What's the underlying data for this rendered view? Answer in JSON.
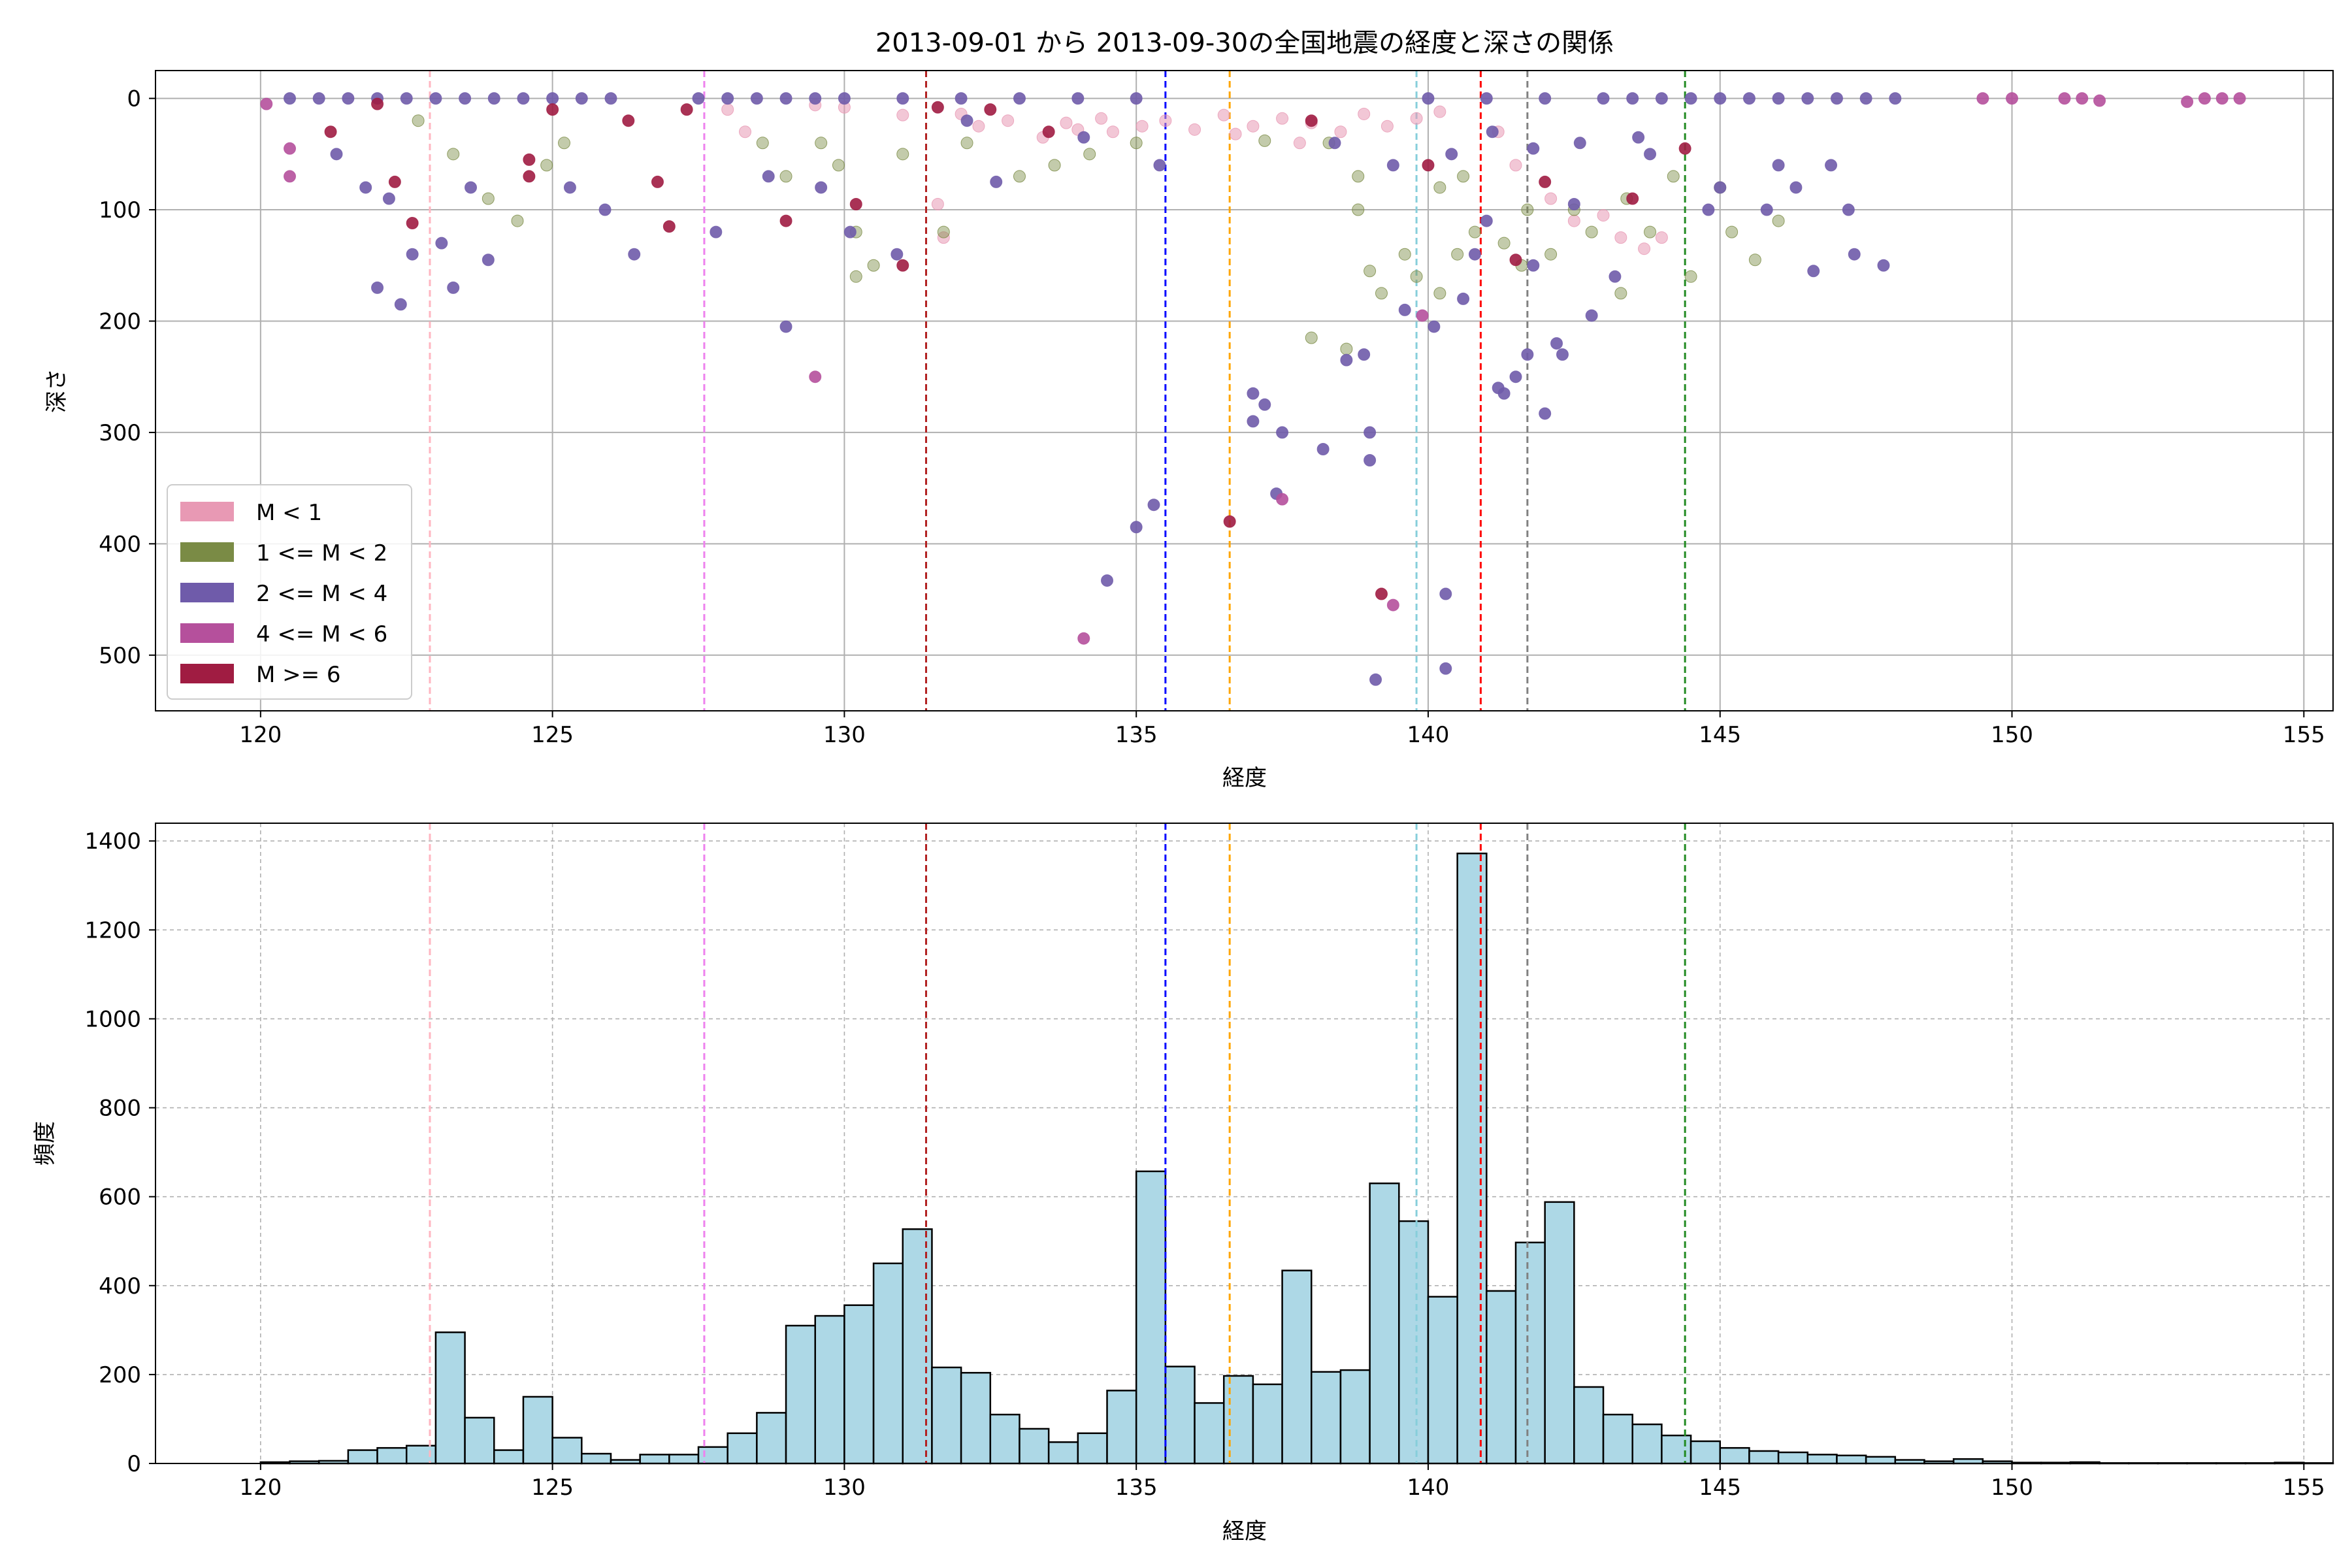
{
  "chart_data": [
    {
      "type": "scatter",
      "title": "2013-09-01 から 2013-09-30の全国地震の経度と深さの関係",
      "xlabel": "経度",
      "ylabel": "深さ",
      "xlim": [
        118.2,
        155.5
      ],
      "ylim": [
        550,
        -25
      ],
      "y_inverted": true,
      "xticks": [
        120,
        125,
        130,
        135,
        140,
        145,
        150,
        155
      ],
      "yticks": [
        0,
        100,
        200,
        300,
        400,
        500
      ],
      "grid": true,
      "legend_position": "lower-left",
      "legend": [
        {
          "label": "M < 1",
          "color": "#E899B4"
        },
        {
          "label": "1 <= M < 2",
          "color": "#7A8B45"
        },
        {
          "label": "2 <= M < 4",
          "color": "#6F5BAA"
        },
        {
          "label": "4 <= M < 6",
          "color": "#B5509C"
        },
        {
          "label": "M >= 6",
          "color": "#A01C42"
        }
      ],
      "vlines": [
        {
          "x": 122.9,
          "color": "#FFB6C1"
        },
        {
          "x": 127.6,
          "color": "#EE82EE"
        },
        {
          "x": 131.4,
          "color": "#B22222"
        },
        {
          "x": 135.5,
          "color": "#0000FF"
        },
        {
          "x": 136.6,
          "color": "#FFA500"
        },
        {
          "x": 139.8,
          "color": "#87CEDB"
        },
        {
          "x": 140.9,
          "color": "#FF0000"
        },
        {
          "x": 141.7,
          "color": "#808080"
        },
        {
          "x": 144.4,
          "color": "#228B22"
        }
      ],
      "series": [
        {
          "name": "M < 1",
          "points": [
            [
              128.0,
              10
            ],
            [
              128.3,
              30
            ],
            [
              130.0,
              8
            ],
            [
              131.0,
              15
            ],
            [
              131.6,
              95
            ],
            [
              131.7,
              125
            ],
            [
              132.3,
              25
            ],
            [
              132.8,
              20
            ],
            [
              133.4,
              35
            ],
            [
              134.0,
              28
            ],
            [
              134.6,
              30
            ],
            [
              135.1,
              25
            ],
            [
              135.5,
              20
            ],
            [
              136.0,
              28
            ],
            [
              136.5,
              15
            ],
            [
              137.0,
              25
            ],
            [
              137.5,
              18
            ],
            [
              138.0,
              22
            ],
            [
              138.5,
              30
            ],
            [
              138.9,
              14
            ],
            [
              139.3,
              25
            ],
            [
              139.8,
              18
            ],
            [
              140.2,
              12
            ],
            [
              141.2,
              30
            ],
            [
              141.5,
              60
            ],
            [
              142.1,
              90
            ],
            [
              142.5,
              110
            ],
            [
              143.0,
              105
            ],
            [
              143.3,
              125
            ],
            [
              143.7,
              135
            ],
            [
              144.0,
              125
            ],
            [
              134.4,
              18
            ],
            [
              133.8,
              22
            ],
            [
              129.5,
              6
            ],
            [
              132.0,
              14
            ],
            [
              136.7,
              32
            ],
            [
              137.8,
              40
            ]
          ]
        },
        {
          "name": "1 <= M < 2",
          "points": [
            [
              122.7,
              20
            ],
            [
              123.3,
              50
            ],
            [
              123.9,
              90
            ],
            [
              124.4,
              110
            ],
            [
              124.9,
              60
            ],
            [
              125.2,
              40
            ],
            [
              128.6,
              40
            ],
            [
              129.0,
              70
            ],
            [
              129.6,
              40
            ],
            [
              129.9,
              60
            ],
            [
              130.2,
              120
            ],
            [
              130.2,
              160
            ],
            [
              130.5,
              150
            ],
            [
              131.0,
              50
            ],
            [
              131.7,
              120
            ],
            [
              132.1,
              40
            ],
            [
              133.0,
              70
            ],
            [
              133.6,
              60
            ],
            [
              134.2,
              50
            ],
            [
              135.0,
              40
            ],
            [
              137.2,
              38
            ],
            [
              138.3,
              40
            ],
            [
              138.8,
              70
            ],
            [
              138.8,
              100
            ],
            [
              139.0,
              155
            ],
            [
              139.2,
              175
            ],
            [
              139.8,
              160
            ],
            [
              140.2,
              175
            ],
            [
              140.6,
              70
            ],
            [
              140.8,
              120
            ],
            [
              141.3,
              130
            ],
            [
              141.6,
              150
            ],
            [
              141.7,
              100
            ],
            [
              142.1,
              140
            ],
            [
              142.5,
              100
            ],
            [
              142.8,
              120
            ],
            [
              143.4,
              90
            ],
            [
              143.8,
              120
            ],
            [
              144.2,
              70
            ],
            [
              144.5,
              160
            ],
            [
              145.0,
              80
            ],
            [
              145.2,
              120
            ],
            [
              145.6,
              145
            ],
            [
              146.0,
              110
            ],
            [
              138.0,
              215
            ],
            [
              138.6,
              225
            ],
            [
              139.6,
              140
            ],
            [
              143.3,
              175
            ],
            [
              140.2,
              80
            ],
            [
              140.5,
              140
            ]
          ]
        },
        {
          "name": "2 <= M < 4",
          "points": [
            [
              120.5,
              0
            ],
            [
              121.0,
              0
            ],
            [
              121.5,
              0
            ],
            [
              122.0,
              0
            ],
            [
              122.5,
              0
            ],
            [
              123.0,
              0
            ],
            [
              123.5,
              0
            ],
            [
              124.0,
              0
            ],
            [
              124.5,
              0
            ],
            [
              125.0,
              0
            ],
            [
              125.5,
              0
            ],
            [
              126.0,
              0
            ],
            [
              127.5,
              0
            ],
            [
              128.0,
              0
            ],
            [
              128.5,
              0
            ],
            [
              129.0,
              0
            ],
            [
              129.5,
              0
            ],
            [
              130.0,
              0
            ],
            [
              131.0,
              0
            ],
            [
              132.0,
              0
            ],
            [
              133.0,
              0
            ],
            [
              134.0,
              0
            ],
            [
              135.0,
              0
            ],
            [
              140.0,
              0
            ],
            [
              141.0,
              0
            ],
            [
              142.0,
              0
            ],
            [
              143.0,
              0
            ],
            [
              143.5,
              0
            ],
            [
              144.0,
              0
            ],
            [
              144.5,
              0
            ],
            [
              145.0,
              0
            ],
            [
              145.5,
              0
            ],
            [
              146.0,
              0
            ],
            [
              146.5,
              0
            ],
            [
              147.0,
              0
            ],
            [
              147.5,
              0
            ],
            [
              148.0,
              0
            ],
            [
              121.3,
              50
            ],
            [
              121.8,
              80
            ],
            [
              122.0,
              170
            ],
            [
              122.2,
              90
            ],
            [
              122.4,
              185
            ],
            [
              122.6,
              140
            ],
            [
              123.1,
              130
            ],
            [
              123.3,
              170
            ],
            [
              123.6,
              80
            ],
            [
              123.9,
              145
            ],
            [
              125.3,
              80
            ],
            [
              125.9,
              100
            ],
            [
              126.4,
              140
            ],
            [
              127.8,
              120
            ],
            [
              128.7,
              70
            ],
            [
              129.0,
              205
            ],
            [
              129.6,
              80
            ],
            [
              130.1,
              120
            ],
            [
              130.9,
              140
            ],
            [
              132.1,
              20
            ],
            [
              132.6,
              75
            ],
            [
              134.1,
              35
            ],
            [
              135.4,
              60
            ],
            [
              135.3,
              365
            ],
            [
              135.0,
              385
            ],
            [
              134.5,
              433
            ],
            [
              137.0,
              265
            ],
            [
              137.2,
              275
            ],
            [
              137.0,
              290
            ],
            [
              137.5,
              300
            ],
            [
              137.4,
              355
            ],
            [
              138.2,
              315
            ],
            [
              138.6,
              235
            ],
            [
              138.9,
              230
            ],
            [
              139.0,
              300
            ],
            [
              139.0,
              325
            ],
            [
              139.1,
              522
            ],
            [
              139.6,
              190
            ],
            [
              140.1,
              205
            ],
            [
              140.3,
              445
            ],
            [
              140.3,
              512
            ],
            [
              140.6,
              180
            ],
            [
              140.8,
              140
            ],
            [
              141.0,
              110
            ],
            [
              141.2,
              260
            ],
            [
              141.3,
              265
            ],
            [
              141.5,
              250
            ],
            [
              141.7,
              230
            ],
            [
              141.8,
              150
            ],
            [
              142.0,
              283
            ],
            [
              142.2,
              220
            ],
            [
              142.3,
              230
            ],
            [
              142.5,
              95
            ],
            [
              142.8,
              195
            ],
            [
              143.2,
              160
            ],
            [
              143.8,
              50
            ],
            [
              144.8,
              100
            ],
            [
              145.0,
              80
            ],
            [
              145.8,
              100
            ],
            [
              146.0,
              60
            ],
            [
              146.3,
              80
            ],
            [
              146.6,
              155
            ],
            [
              146.9,
              60
            ],
            [
              147.3,
              140
            ],
            [
              147.8,
              150
            ],
            [
              147.2,
              100
            ],
            [
              138.4,
              40
            ],
            [
              139.4,
              60
            ],
            [
              140.4,
              50
            ],
            [
              141.1,
              30
            ],
            [
              141.8,
              45
            ],
            [
              142.6,
              40
            ],
            [
              143.6,
              35
            ]
          ]
        },
        {
          "name": "4 <= M < 6",
          "points": [
            [
              120.1,
              5
            ],
            [
              120.5,
              45
            ],
            [
              120.5,
              70
            ],
            [
              129.5,
              250
            ],
            [
              134.1,
              485
            ],
            [
              137.5,
              360
            ],
            [
              139.4,
              455
            ],
            [
              139.9,
              195
            ],
            [
              150.9,
              0
            ],
            [
              151.2,
              0
            ],
            [
              151.5,
              2
            ],
            [
              153.0,
              3
            ],
            [
              153.3,
              0
            ],
            [
              153.6,
              0
            ],
            [
              153.9,
              0
            ],
            [
              150.0,
              0
            ],
            [
              149.5,
              0
            ]
          ]
        },
        {
          "name": "M >= 6",
          "points": [
            [
              121.2,
              30
            ],
            [
              122.0,
              5
            ],
            [
              122.3,
              75
            ],
            [
              122.6,
              112
            ],
            [
              124.6,
              55
            ],
            [
              124.6,
              70
            ],
            [
              125.0,
              10
            ],
            [
              126.3,
              20
            ],
            [
              126.8,
              75
            ],
            [
              127.0,
              115
            ],
            [
              127.3,
              10
            ],
            [
              129.0,
              110
            ],
            [
              130.2,
              95
            ],
            [
              131.0,
              150
            ],
            [
              131.6,
              8
            ],
            [
              132.5,
              10
            ],
            [
              136.6,
              380
            ],
            [
              139.2,
              445
            ],
            [
              140.0,
              60
            ],
            [
              141.5,
              145
            ],
            [
              142.0,
              75
            ],
            [
              143.5,
              90
            ],
            [
              144.4,
              45
            ],
            [
              138.0,
              20
            ],
            [
              133.5,
              30
            ]
          ]
        }
      ]
    },
    {
      "type": "bar",
      "title": "",
      "xlabel": "経度",
      "ylabel": "頻度",
      "xlim": [
        118.2,
        155.5
      ],
      "ylim": [
        0,
        1440
      ],
      "xticks": [
        120,
        125,
        130,
        135,
        140,
        145,
        150,
        155
      ],
      "yticks": [
        0,
        200,
        400,
        600,
        800,
        1000,
        1200,
        1400
      ],
      "grid": true,
      "bar_color": "#ADD8E6",
      "edge_color": "#000000",
      "bin_start": 120.0,
      "bin_width": 0.5,
      "values": [
        3,
        5,
        6,
        30,
        35,
        40,
        295,
        103,
        30,
        150,
        58,
        22,
        8,
        20,
        20,
        37,
        68,
        114,
        310,
        332,
        356,
        450,
        527,
        216,
        204,
        110,
        78,
        48,
        68,
        164,
        657,
        218,
        136,
        197,
        178,
        434,
        206,
        210,
        630,
        545,
        375,
        1372,
        388,
        497,
        588,
        172,
        110,
        88,
        63,
        50,
        35,
        28,
        25,
        20,
        18,
        15,
        8,
        5,
        10,
        5,
        2,
        2,
        3,
        1,
        1,
        1,
        1,
        1,
        1,
        2,
        1
      ]
    }
  ],
  "vline_style": "dashed"
}
